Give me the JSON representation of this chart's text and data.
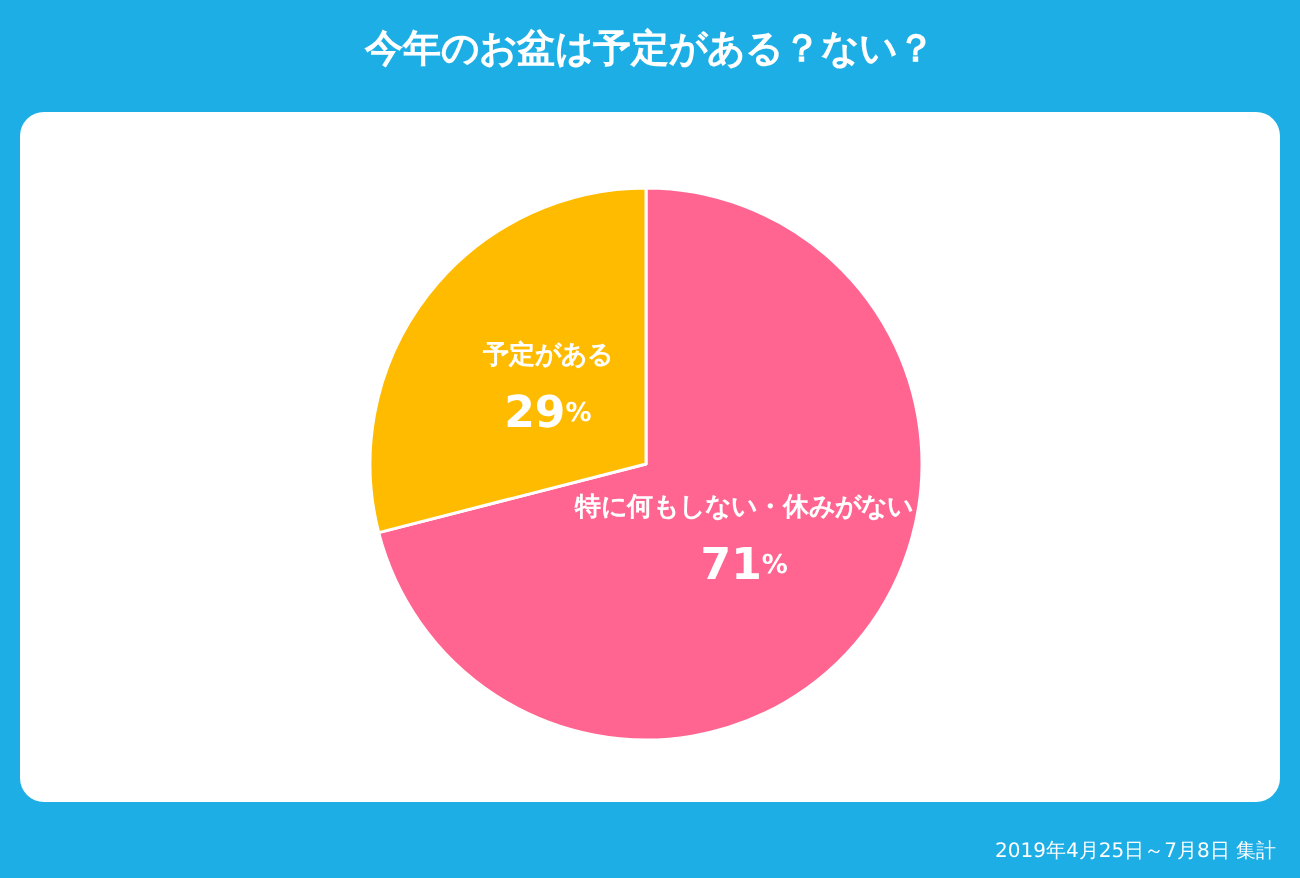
{
  "chart_data": {
    "type": "pie",
    "title": "今年のお盆は予定がある？ない？",
    "categories": [
      "特に何もしない・休みがない",
      "予定がある"
    ],
    "values": [
      71,
      29
    ],
    "colors": [
      "#ff6590",
      "#ffbb00"
    ],
    "value_labels": [
      "71%",
      "29%"
    ],
    "legend": false,
    "annotations": [
      "2019年4月25日～7月8日 集計"
    ]
  }
}
